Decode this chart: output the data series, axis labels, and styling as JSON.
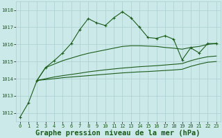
{
  "background_color": "#cce9e9",
  "grid_color": "#aacfcf",
  "line_color": "#1a5c1a",
  "title": "Graphe pression niveau de la mer (hPa)",
  "title_fontsize": 7.5,
  "xlim": [
    -0.5,
    23.5
  ],
  "ylim": [
    1011.5,
    1018.5
  ],
  "yticks": [
    1012,
    1013,
    1014,
    1015,
    1016,
    1017,
    1018
  ],
  "xticks": [
    0,
    1,
    2,
    3,
    4,
    5,
    6,
    7,
    8,
    9,
    10,
    11,
    12,
    13,
    14,
    15,
    16,
    17,
    18,
    19,
    20,
    21,
    22,
    23
  ],
  "series1_x": [
    0,
    1,
    2,
    3,
    4,
    5,
    6,
    7,
    8,
    9,
    10,
    11,
    12,
    13,
    14,
    15,
    16,
    17,
    18,
    19,
    20,
    21,
    22,
    23
  ],
  "series1_y": [
    1011.75,
    1012.6,
    1013.9,
    1014.65,
    1015.05,
    1015.5,
    1016.05,
    1016.85,
    1017.5,
    1017.25,
    1017.1,
    1017.55,
    1017.9,
    1017.55,
    1017.0,
    1016.4,
    1016.35,
    1016.5,
    1016.3,
    1015.1,
    1015.8,
    1015.5,
    1016.05,
    1016.05
  ],
  "series2_x": [
    2,
    3,
    4,
    5,
    6,
    7,
    8,
    9,
    10,
    11,
    12,
    13,
    14,
    15,
    16,
    17,
    18,
    19,
    20,
    21,
    22,
    23
  ],
  "series2_y": [
    1013.9,
    1014.65,
    1014.85,
    1015.05,
    1015.2,
    1015.35,
    1015.48,
    1015.58,
    1015.68,
    1015.78,
    1015.88,
    1015.92,
    1015.92,
    1015.9,
    1015.88,
    1015.82,
    1015.78,
    1015.72,
    1015.82,
    1015.88,
    1016.0,
    1016.05
  ],
  "series3_x": [
    2,
    3,
    4,
    5,
    6,
    7,
    8,
    9,
    10,
    11,
    12,
    13,
    14,
    15,
    16,
    17,
    18,
    19,
    20,
    21,
    22,
    23
  ],
  "series3_y": [
    1013.9,
    1014.0,
    1014.1,
    1014.18,
    1014.25,
    1014.32,
    1014.4,
    1014.46,
    1014.52,
    1014.57,
    1014.62,
    1014.66,
    1014.7,
    1014.73,
    1014.76,
    1014.8,
    1014.84,
    1014.88,
    1015.05,
    1015.18,
    1015.28,
    1015.32
  ],
  "series4_x": [
    2,
    3,
    4,
    5,
    6,
    7,
    8,
    9,
    10,
    11,
    12,
    13,
    14,
    15,
    16,
    17,
    18,
    19,
    20,
    21,
    22,
    23
  ],
  "series4_y": [
    1013.9,
    1013.95,
    1014.0,
    1014.06,
    1014.1,
    1014.14,
    1014.18,
    1014.22,
    1014.26,
    1014.3,
    1014.34,
    1014.37,
    1014.4,
    1014.42,
    1014.45,
    1014.48,
    1014.51,
    1014.55,
    1014.72,
    1014.85,
    1014.96,
    1015.0
  ]
}
